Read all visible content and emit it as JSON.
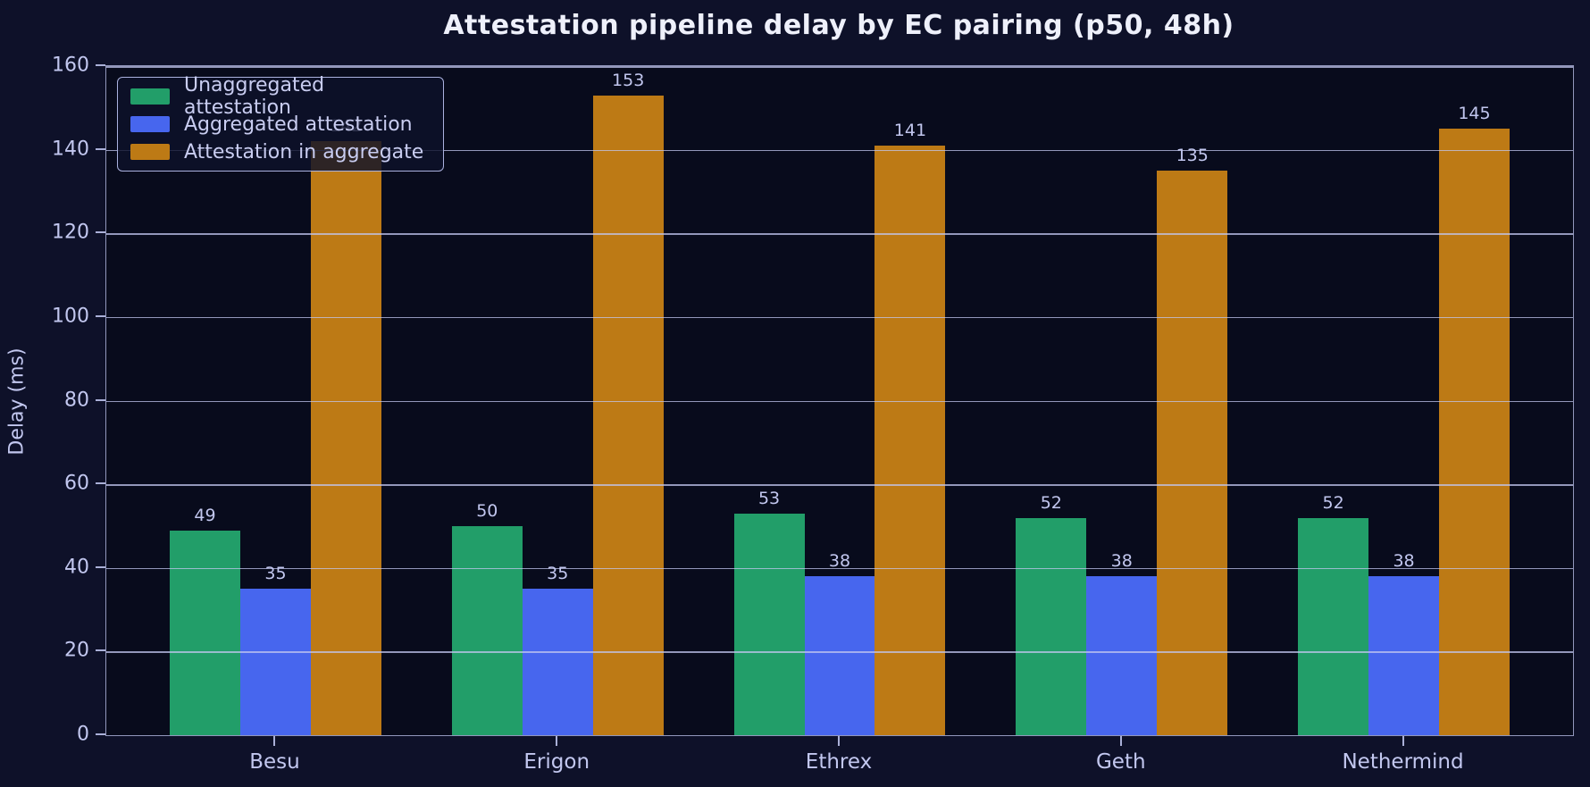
{
  "chart_data": {
    "type": "bar",
    "title": "Attestation pipeline delay by EC pairing (p50, 48h)",
    "ylabel": "Delay (ms)",
    "xlabel": "",
    "categories": [
      "Besu",
      "Erigon",
      "Ethrex",
      "Geth",
      "Nethermind"
    ],
    "series": [
      {
        "name": "Unaggregated attestation",
        "color": "#229e69",
        "values": [
          49,
          50,
          53,
          52,
          52
        ]
      },
      {
        "name": "Aggregated attestation",
        "color": "#4766ee",
        "values": [
          35,
          35,
          38,
          38,
          38
        ]
      },
      {
        "name": "Attestation in aggregate",
        "color": "#bd7a15",
        "values": [
          142,
          153,
          141,
          135,
          145
        ]
      }
    ],
    "ylim": [
      0,
      160
    ],
    "yticks": [
      0,
      20,
      40,
      60,
      80,
      100,
      120,
      140,
      160
    ],
    "grid": true,
    "bar_value_labels": true,
    "legend_position": "upper-left",
    "colors": {
      "figure_bg": "#0e1129",
      "plot_bg": "#080b1c",
      "grid": "#c2c7ef",
      "text": "#c2c7ef",
      "title": "#eef0fb",
      "legend_border": "#aab1de",
      "spine": "#aab0d8"
    }
  }
}
